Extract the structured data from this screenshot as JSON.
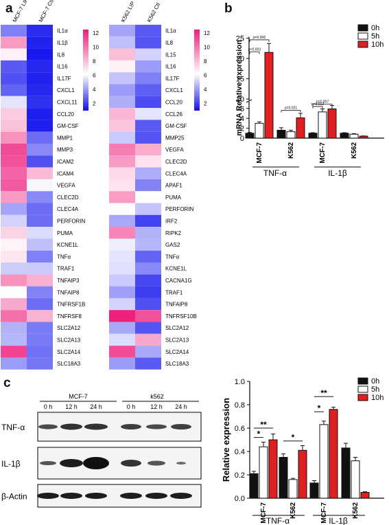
{
  "panels": {
    "a": "a",
    "b": "b",
    "c": "c"
  },
  "heatmap_left": {
    "col_labels": [
      "MCF-7 LIP",
      "MCF-7 Ctl"
    ],
    "genes": [
      "IL1α",
      "IL1β",
      "IL8",
      "IL16",
      "IL17F",
      "CXCL1",
      "CXCL11",
      "CCL20",
      "GM-CSF",
      "MMP1",
      "MMP3",
      "ICAM2",
      "ICAM4",
      "VEGFA",
      "CLEC2D",
      "CLEC4A",
      "PERFORIN",
      "PUMA",
      "KCNE1L",
      "TNFα",
      "TRAF1",
      "TNFAIP3",
      "TNFAIP8",
      "TNFRSF1B",
      "TNFRSF8",
      "SLC2A12",
      "SLC2A13",
      "SLC2A14",
      "SLC18A3"
    ],
    "values": [
      [
        3.4,
        1.6
      ],
      [
        9.0,
        1.4
      ],
      [
        6.6,
        1.2
      ],
      [
        2.6,
        1.5
      ],
      [
        2.4,
        1.4
      ],
      [
        2.8,
        1.5
      ],
      [
        5.6,
        1.7
      ],
      [
        7.6,
        1.3
      ],
      [
        7.9,
        1.3
      ],
      [
        9.2,
        3.0
      ],
      [
        11.2,
        3.6
      ],
      [
        11.0,
        2.4
      ],
      [
        10.5,
        8.1
      ],
      [
        10.8,
        6.0
      ],
      [
        9.0,
        3.6
      ],
      [
        4.2,
        3.0
      ],
      [
        5.2,
        3.0
      ],
      [
        7.4,
        5.4
      ],
      [
        6.5,
        4.8
      ],
      [
        6.9,
        3.4
      ],
      [
        5.1,
        5.0
      ],
      [
        9.2,
        8.4
      ],
      [
        6.2,
        3.5
      ],
      [
        8.6,
        3.0
      ],
      [
        10.2,
        8.3
      ],
      [
        4.5,
        3.3
      ],
      [
        4.6,
        3.3
      ],
      [
        11.4,
        3.1
      ],
      [
        4.0,
        3.2
      ]
    ],
    "colorbar": {
      "ticks": [
        "12",
        "10",
        "8",
        "6",
        "4",
        "2"
      ],
      "min": 1,
      "max": 12.5
    }
  },
  "heatmap_right": {
    "col_labels": [
      "K562 LIP",
      "K562 Ctl"
    ],
    "genes": [
      "IL1α",
      "IL8",
      "IL15",
      "IL16",
      "IL17F",
      "CXCL1",
      "CCL20",
      "CCL26",
      "GM-CSF",
      "MMP25",
      "VEGFA",
      "CLEC2D",
      "CLEC4A",
      "APAF1",
      "PUMA",
      "PERFORIN",
      "IRF2",
      "RIPK2",
      "GAS2",
      "TNFα",
      "KCNE1L",
      "CACNA1G",
      "TRAF1",
      "TNFAIP8",
      "TNFRSF10B",
      "SLC2A12",
      "SLC2A13",
      "SLC2A14",
      "SLC18A3"
    ],
    "values": [
      [
        4.2,
        2.6
      ],
      [
        4.8,
        2.5
      ],
      [
        8.0,
        5.2
      ],
      [
        6.6,
        4.0
      ],
      [
        4.9,
        3.4
      ],
      [
        4.0,
        2.7
      ],
      [
        4.4,
        2.3
      ],
      [
        8.2,
        5.6
      ],
      [
        7.8,
        2.6
      ],
      [
        5.0,
        2.5
      ],
      [
        9.8,
        8.5
      ],
      [
        9.0,
        7.0
      ],
      [
        7.2,
        4.4
      ],
      [
        7.0,
        3.5
      ],
      [
        8.9,
        6.2
      ],
      [
        6.1,
        4.9
      ],
      [
        4.3,
        2.1
      ],
      [
        9.6,
        4.5
      ],
      [
        5.8,
        4.6
      ],
      [
        5.6,
        2.8
      ],
      [
        5.5,
        3.6
      ],
      [
        5.0,
        2.2
      ],
      [
        4.1,
        2.0
      ],
      [
        5.2,
        2.4
      ],
      [
        12.4,
        11.0
      ],
      [
        4.3,
        2.5
      ],
      [
        5.4,
        8.6
      ],
      [
        11.2,
        4.3
      ],
      [
        4.0,
        2.6
      ]
    ],
    "colorbar": {
      "ticks": [
        "12",
        "10",
        "8",
        "6",
        "4",
        "2"
      ],
      "min": 1,
      "max": 12.5
    }
  },
  "chart_b": {
    "chart_data": {
      "type": "bar",
      "ylabel": "mRNA Relative expression",
      "categories": [
        "MCF-7",
        "K562",
        "MCF-7",
        "K562"
      ],
      "groups": [
        "TNF-α",
        "IL-1β"
      ],
      "yticks": [
        "0",
        "2",
        "4",
        "6",
        "10",
        "15",
        "20",
        "25"
      ],
      "y_axis_break": [
        7,
        9
      ],
      "series": [
        {
          "name": "0h",
          "values": [
            1.0,
            1.6,
            1.0,
            1.0
          ],
          "errors": [
            0.15,
            0.5,
            0.1,
            0.1
          ]
        },
        {
          "name": "5h",
          "values": [
            3.0,
            1.3,
            5.3,
            0.8
          ],
          "errors": [
            0.3,
            0.3,
            0.6,
            0.1
          ]
        },
        {
          "name": "10h",
          "values": [
            21.5,
            4.1,
            5.9,
            0.4
          ],
          "errors": [
            2.2,
            0.9,
            0.7,
            0.05
          ]
        }
      ],
      "annotations": [
        "p=0.006",
        "p=0.003",
        "p=0.021",
        "p=0.007",
        "p=0.012"
      ],
      "colors": {
        "0h": "#111111",
        "5h": "#ffffff",
        "10h": "#e02020"
      }
    }
  },
  "blot": {
    "group_labels": [
      "MCF-7",
      "k562"
    ],
    "lane_labels": [
      "0 h",
      "12 h",
      "24 h",
      "0 h",
      "12 h",
      "24 h"
    ],
    "row_labels": [
      "TNF-α",
      "IL-1β",
      "β-Actin"
    ]
  },
  "chart_c": {
    "chart_data": {
      "type": "bar",
      "ylabel": "Relative expression",
      "categories": [
        "MCF-7",
        "K562",
        "MCF-7",
        "K562"
      ],
      "groups": [
        "TNF-α",
        "IL-1β"
      ],
      "ylim": [
        0,
        1.0
      ],
      "yticks": [
        "0.0",
        "0.2",
        "0.4",
        "0.6",
        "0.8",
        "1.0"
      ],
      "series": [
        {
          "name": "0h",
          "values": [
            0.21,
            0.35,
            0.13,
            0.43
          ],
          "errors": [
            0.02,
            0.03,
            0.02,
            0.04
          ]
        },
        {
          "name": "5h",
          "values": [
            0.44,
            0.16,
            0.63,
            0.32
          ],
          "errors": [
            0.04,
            0.01,
            0.03,
            0.03
          ]
        },
        {
          "name": "10h",
          "values": [
            0.5,
            0.41,
            0.76,
            0.05
          ],
          "errors": [
            0.05,
            0.04,
            0.02,
            0.005
          ]
        }
      ],
      "annotations": [
        "*",
        "**",
        "*",
        "*",
        "**"
      ],
      "colors": {
        "0h": "#111111",
        "5h": "#ffffff",
        "10h": "#e02020"
      }
    }
  }
}
